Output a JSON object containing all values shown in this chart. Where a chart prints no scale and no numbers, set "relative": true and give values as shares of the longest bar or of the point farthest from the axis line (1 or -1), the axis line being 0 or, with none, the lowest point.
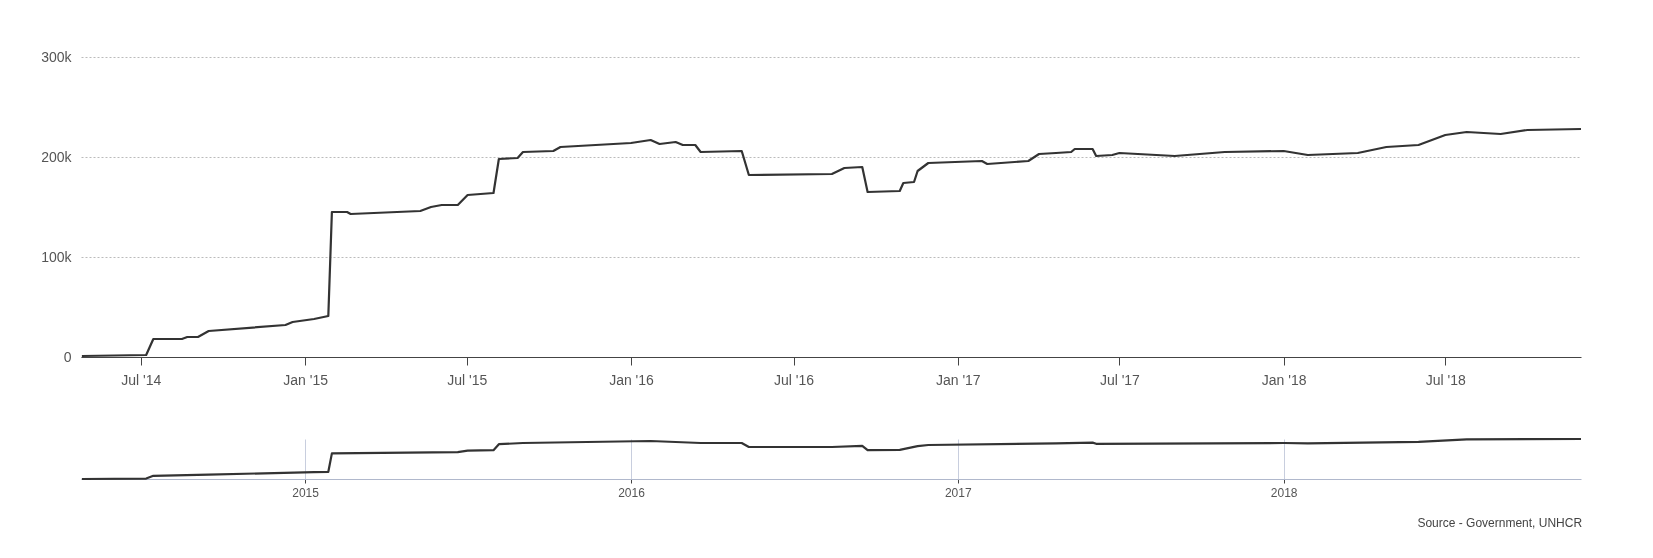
{
  "chart_data": [
    {
      "type": "line",
      "series": [
        {
          "color": "#333333",
          "x": [
            "2014-04-26",
            "2014-07-07",
            "2014-07-15",
            "2014-08-16",
            "2014-08-22",
            "2014-09-03",
            "2014-09-15",
            "2014-12-10",
            "2014-12-18",
            "2015-01-11",
            "2015-01-27",
            "2015-01-31",
            "2015-02-17",
            "2015-02-21",
            "2015-05-10",
            "2015-05-22",
            "2015-06-03",
            "2015-06-21",
            "2015-07-02",
            "2015-07-31",
            "2015-08-06",
            "2015-08-27",
            "2015-09-02",
            "2015-10-06",
            "2015-10-14",
            "2016-01-01",
            "2016-01-23",
            "2016-02-02",
            "2016-02-20",
            "2016-02-28",
            "2016-03-13",
            "2016-03-19",
            "2016-05-04",
            "2016-05-12",
            "2016-08-13",
            "2016-08-27",
            "2016-09-16",
            "2016-09-22",
            "2016-10-28",
            "2016-11-01",
            "2016-11-13",
            "2016-11-17",
            "2016-11-29",
            "2017-01-28",
            "2017-02-03",
            "2017-03-21",
            "2017-04-02",
            "2017-04-21",
            "2017-05-08",
            "2017-05-12",
            "2017-06-01",
            "2017-06-05",
            "2017-06-23",
            "2017-07-01",
            "2017-09-01",
            "2017-10-27",
            "2018-01-01",
            "2018-01-28",
            "2018-03-25",
            "2018-04-26",
            "2018-06-01",
            "2018-07-01",
            "2018-07-25",
            "2018-09-01",
            "2018-10-01",
            "2018-11-30"
          ],
          "values": [
            1000,
            2000,
            18000,
            18000,
            20000,
            20000,
            26000,
            32000,
            35000,
            38000,
            41000,
            145000,
            145000,
            143000,
            146000,
            150000,
            152000,
            152000,
            162000,
            164000,
            198000,
            199000,
            205000,
            206000,
            210000,
            214000,
            217000,
            213000,
            215000,
            212000,
            212000,
            205000,
            206000,
            182000,
            183000,
            189000,
            190000,
            165000,
            166000,
            174000,
            175000,
            186000,
            194000,
            196000,
            193000,
            196000,
            203000,
            204000,
            205000,
            208000,
            208000,
            201000,
            202000,
            204000,
            201000,
            205000,
            206000,
            202000,
            204000,
            210000,
            212000,
            222000,
            225000,
            223000,
            227000,
            228000
          ]
        }
      ],
      "xlim": [
        "2014-04-25",
        "2018-11-30"
      ],
      "xticks": [
        {
          "value": "2014-07-01",
          "label": "Jul '14"
        },
        {
          "value": "2015-01-01",
          "label": "Jan '15"
        },
        {
          "value": "2015-07-01",
          "label": "Jul '15"
        },
        {
          "value": "2016-01-01",
          "label": "Jan '16"
        },
        {
          "value": "2016-07-01",
          "label": "Jul '16"
        },
        {
          "value": "2017-01-01",
          "label": "Jan '17"
        },
        {
          "value": "2017-07-01",
          "label": "Jul '17"
        },
        {
          "value": "2018-01-01",
          "label": "Jan '18"
        },
        {
          "value": "2018-07-01",
          "label": "Jul '18"
        }
      ],
      "ylim": [
        0,
        300000
      ],
      "yticks": [
        0,
        {
          "value": 100000,
          "label": "100k"
        },
        {
          "value": 200000,
          "label": "200k"
        },
        {
          "value": 300000,
          "label": "300k"
        }
      ],
      "grid": "y",
      "line_style": "solid"
    },
    {
      "type": "line",
      "relative": true,
      "series": [
        {
          "color": "#333333",
          "x": [
            "2014-04-26",
            "2014-07-07",
            "2014-07-15",
            "2014-09-15",
            "2015-01-11",
            "2015-01-27",
            "2015-01-31",
            "2015-06-21",
            "2015-07-02",
            "2015-07-31",
            "2015-08-06",
            "2015-09-02",
            "2016-01-23",
            "2016-03-19",
            "2016-05-04",
            "2016-05-12",
            "2016-08-13",
            "2016-09-16",
            "2016-09-22",
            "2016-10-28",
            "2016-11-17",
            "2016-11-29",
            "2017-04-21",
            "2017-06-01",
            "2017-06-05",
            "2018-01-01",
            "2018-01-28",
            "2018-06-01",
            "2018-07-25",
            "2018-11-30"
          ],
          "values": [
            0.0,
            0.01,
            0.08,
            0.11,
            0.17,
            0.18,
            0.64,
            0.67,
            0.71,
            0.72,
            0.87,
            0.9,
            0.95,
            0.9,
            0.9,
            0.8,
            0.8,
            0.83,
            0.72,
            0.73,
            0.82,
            0.85,
            0.89,
            0.91,
            0.88,
            0.9,
            0.89,
            0.93,
            0.99,
            1.0
          ]
        }
      ],
      "xlim": [
        "2014-04-25",
        "2018-11-30"
      ],
      "xticks": [
        {
          "value": "2015-01-01",
          "label": "2015"
        },
        {
          "value": "2016-01-01",
          "label": "2016"
        },
        {
          "value": "2017-01-01",
          "label": "2017"
        },
        {
          "value": "2018-01-01",
          "label": "2018"
        }
      ],
      "grid": "x",
      "annotations": [
        "Source - Government, UNHCR"
      ]
    }
  ]
}
